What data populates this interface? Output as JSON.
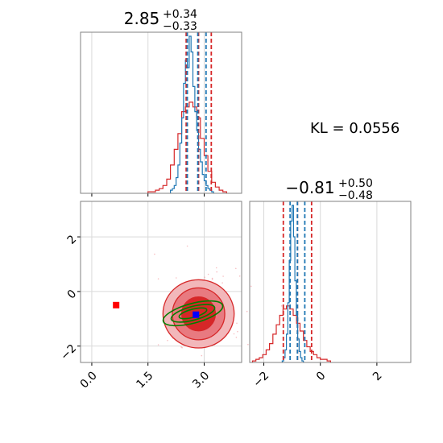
{
  "chart_data": {
    "type": "corner",
    "colors": {
      "posterior_a": "#d62728",
      "posterior_b": "#1f77b4",
      "contour_b": "#008000",
      "marker_a": "#ff0000",
      "marker_b": "#0000ff",
      "grid": "#d9d9d9",
      "frame": "#808080"
    },
    "kl": {
      "label": "KL = 0.0556"
    },
    "param1": {
      "title_main": "2.85",
      "title_plus": "+0.34",
      "title_minus": "−0.33",
      "xlim": [
        -0.3,
        4.0
      ],
      "ticks": [
        0.0,
        1.5,
        3.0
      ],
      "tick_labels": [
        "0.0",
        "1.5",
        "3.0"
      ],
      "quantiles_a": [
        2.52,
        2.85,
        3.19
      ],
      "quantiles_b": [
        2.55,
        2.83,
        3.05
      ],
      "hist_a": {
        "x0": 1.5,
        "dx": 0.1,
        "counts": [
          1,
          1,
          2,
          3,
          5,
          9,
          18,
          28,
          38,
          52,
          55,
          58,
          55,
          48,
          35,
          24,
          14,
          7,
          4,
          2,
          1
        ]
      },
      "hist_b": {
        "x0": 2.1,
        "dx": 0.05,
        "counts": [
          2,
          3,
          5,
          10,
          18,
          32,
          48,
          70,
          85,
          80,
          100,
          90,
          68,
          52,
          40,
          28,
          20,
          12,
          8,
          5,
          3,
          2,
          1
        ]
      }
    },
    "param2": {
      "title_main": "−0.81",
      "title_plus": "+0.50",
      "title_minus": "−0.48",
      "xlim": [
        -2.5,
        3.2
      ],
      "ticks": [
        -2,
        0,
        2
      ],
      "tick_labels": [
        "−2",
        "0",
        "2"
      ],
      "quantiles_a": [
        -1.31,
        -0.81,
        -0.31
      ],
      "quantiles_b": [
        -1.07,
        -0.81,
        -0.55
      ],
      "hist_a": {
        "x0": -2.4,
        "dx": 0.12,
        "counts": [
          1,
          2,
          3,
          5,
          8,
          12,
          18,
          24,
          30,
          34,
          36,
          34,
          30,
          25,
          20,
          14,
          10,
          7,
          5,
          3,
          2,
          2,
          1
        ]
      },
      "hist_b": {
        "x0": -1.35,
        "dx": 0.05,
        "counts": [
          1,
          3,
          8,
          18,
          38,
          65,
          90,
          100,
          80,
          52,
          30,
          15,
          7,
          3,
          1
        ]
      }
    },
    "scatter2d": {
      "xlim": [
        -0.3,
        4.0
      ],
      "ylim": [
        -2.6,
        3.3
      ],
      "xticks": [
        0.0,
        1.5,
        3.0
      ],
      "xtick_labels": [
        "0.0",
        "1.5",
        "3.0"
      ],
      "yticks": [
        -2,
        0,
        2
      ],
      "ytick_labels": [
        "−2",
        "0",
        "2"
      ],
      "contours_a": [
        {
          "cx": 2.85,
          "cy": -0.82,
          "rx": 0.95,
          "ry": 1.25
        },
        {
          "cx": 2.85,
          "cy": -0.82,
          "rx": 0.7,
          "ry": 0.95
        },
        {
          "cx": 2.85,
          "cy": -0.82,
          "rx": 0.45,
          "ry": 0.62
        }
      ],
      "contours_b": [
        {
          "cx": 2.7,
          "cy": -0.8,
          "rx": 0.82,
          "ry": 0.36,
          "angle": -15
        },
        {
          "cx": 2.7,
          "cy": -0.8,
          "rx": 0.6,
          "ry": 0.25,
          "angle": -15
        },
        {
          "cx": 2.7,
          "cy": -0.8,
          "rx": 0.38,
          "ry": 0.15,
          "angle": -15
        }
      ],
      "marker_a": [
        0.65,
        -0.5
      ],
      "marker_b": [
        2.78,
        -0.85
      ]
    }
  }
}
